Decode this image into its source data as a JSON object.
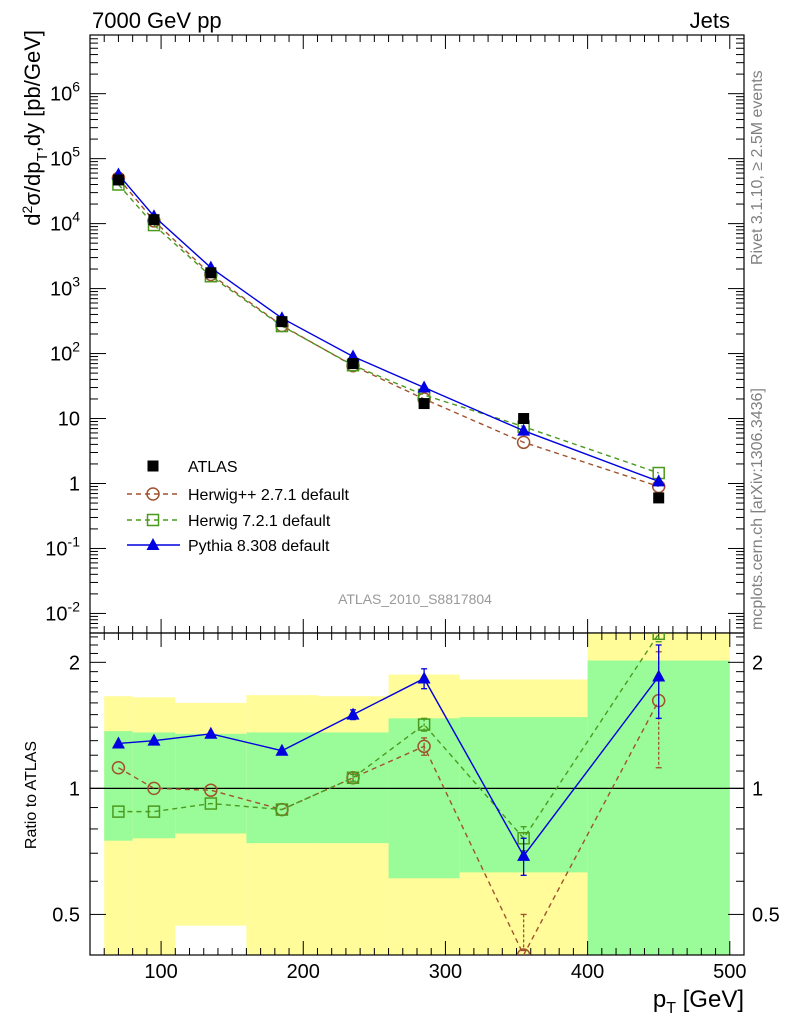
{
  "header": {
    "left": "7000 GeV pp",
    "right": "Jets"
  },
  "side_text": {
    "rivet": "Rivet 3.1.10, ≥ 2.5M events",
    "mcplots": "mcplots.cern.ch [arXiv:1306.3436]"
  },
  "chart_data": [
    {
      "type": "scatter",
      "panel": "main",
      "analysis_label": "ATLAS_2010_S8817804",
      "ylabel": "d²σ/dp_T,dy [pb/GeV]",
      "xlabel": "p_T [GeV]",
      "xlim": [
        50,
        510
      ],
      "ylim": [
        0.005,
        8000000
      ],
      "y_scale": "log",
      "x_ticks": [
        100,
        200,
        300,
        400,
        500
      ],
      "y_ticks": [
        {
          "value": 0.01,
          "label": "10^-2"
        },
        {
          "value": 0.1,
          "label": "10^-1"
        },
        {
          "value": 1,
          "label": "1"
        },
        {
          "value": 10,
          "label": "10"
        },
        {
          "value": 100,
          "label": "10^2"
        },
        {
          "value": 1000,
          "label": "10^3"
        },
        {
          "value": 10000,
          "label": "10^4"
        },
        {
          "value": 100000,
          "label": "10^5"
        },
        {
          "value": 1000000,
          "label": "10^6"
        }
      ],
      "legend_position": "bottom-left",
      "x": [
        70,
        95,
        135,
        185,
        235,
        285,
        355,
        450
      ],
      "series": [
        {
          "name": "ATLAS",
          "marker": "filled-square",
          "color": "#000000",
          "values": [
            47000,
            11500,
            1750,
            310,
            70,
            17,
            10,
            0.6
          ]
        },
        {
          "name": "Herwig++ 2.7.1 default",
          "marker": "open-circle",
          "color": "#a0522d",
          "line": "dashed",
          "values": [
            50000,
            11000,
            1650,
            270,
            65,
            20,
            4.3,
            0.9
          ]
        },
        {
          "name": "Herwig 7.2.1 default",
          "marker": "open-square",
          "color": "#4b9a1f",
          "line": "dashed",
          "values": [
            40000,
            9500,
            1550,
            265,
            66,
            23,
            7.5,
            1.45
          ]
        },
        {
          "name": "Pythia 8.308 default",
          "marker": "filled-triangle",
          "color": "#0000e0",
          "line": "solid",
          "values": [
            57000,
            13000,
            2100,
            350,
            90,
            30,
            6.5,
            1.08
          ]
        }
      ]
    },
    {
      "type": "scatter",
      "panel": "ratio",
      "ylabel": "Ratio to ATLAS",
      "xlim": [
        50,
        510
      ],
      "ylim": [
        0.4,
        2.35
      ],
      "y_scale": "log",
      "y_ticks": [
        {
          "value": 0.5,
          "label": "0.5"
        },
        {
          "value": 1,
          "label": "1"
        },
        {
          "value": 2,
          "label": "2"
        }
      ],
      "x": [
        70,
        95,
        135,
        185,
        235,
        285,
        355,
        450
      ],
      "uncertainty_bands": [
        {
          "x_low": 60,
          "x_high": 80,
          "stat_low": 0.75,
          "stat_high": 1.37,
          "total_low": 0.37,
          "total_high": 1.66
        },
        {
          "x_low": 80,
          "x_high": 110,
          "stat_low": 0.76,
          "stat_high": 1.36,
          "total_low": 0.39,
          "total_high": 1.65
        },
        {
          "x_low": 110,
          "x_high": 160,
          "stat_low": 0.78,
          "stat_high": 1.35,
          "total_low": 0.47,
          "total_high": 1.6
        },
        {
          "x_low": 160,
          "x_high": 210,
          "stat_low": 0.74,
          "stat_high": 1.36,
          "total_low": 0.3,
          "total_high": 1.67
        },
        {
          "x_low": 210,
          "x_high": 260,
          "stat_low": 0.74,
          "stat_high": 1.36,
          "total_low": 0.3,
          "total_high": 1.66
        },
        {
          "x_low": 260,
          "x_high": 310,
          "stat_low": 0.61,
          "stat_high": 1.47,
          "total_low": 0.3,
          "total_high": 1.87
        },
        {
          "x_low": 310,
          "x_high": 400,
          "stat_low": 0.63,
          "stat_high": 1.48,
          "total_low": 0.3,
          "total_high": 1.82
        },
        {
          "x_low": 400,
          "x_high": 500,
          "stat_low": 0.3,
          "stat_high": 2.02,
          "total_low": 0.3,
          "total_high": 2.6
        }
      ],
      "band_colors": {
        "stat": "#9afc98",
        "total": "#fffc99"
      },
      "series": [
        {
          "name": "Herwig++ 2.7.1 default",
          "marker": "open-circle",
          "color": "#a0522d",
          "line": "dashed",
          "values": [
            1.12,
            1.0,
            0.99,
            0.89,
            1.06,
            1.26,
            0.4,
            1.62
          ],
          "err_low": [
            0,
            0,
            0,
            0,
            0.03,
            0.06,
            0.04,
            0.5
          ],
          "err_high": [
            0,
            0,
            0,
            0,
            0.03,
            0.06,
            0.1,
            0.5
          ]
        },
        {
          "name": "Herwig 7.2.1 default",
          "marker": "open-square",
          "color": "#4b9a1f",
          "line": "dashed",
          "values": [
            0.88,
            0.88,
            0.92,
            0.89,
            1.06,
            1.42,
            0.76,
            2.34
          ],
          "err_low": [
            0,
            0,
            0,
            0,
            0.02,
            0.05,
            0.05,
            0.1
          ],
          "err_high": [
            0,
            0,
            0,
            0,
            0.02,
            0.05,
            0.05,
            0.1
          ]
        },
        {
          "name": "Pythia 8.308 default",
          "marker": "filled-triangle",
          "color": "#0000e0",
          "line": "solid",
          "values": [
            1.28,
            1.3,
            1.35,
            1.23,
            1.5,
            1.83,
            0.69,
            1.85
          ],
          "err_low": [
            0,
            0,
            0,
            0,
            0.04,
            0.1,
            0.07,
            0.38
          ],
          "err_high": [
            0,
            0,
            0,
            0,
            0.04,
            0.1,
            0.07,
            0.35
          ]
        }
      ]
    }
  ]
}
